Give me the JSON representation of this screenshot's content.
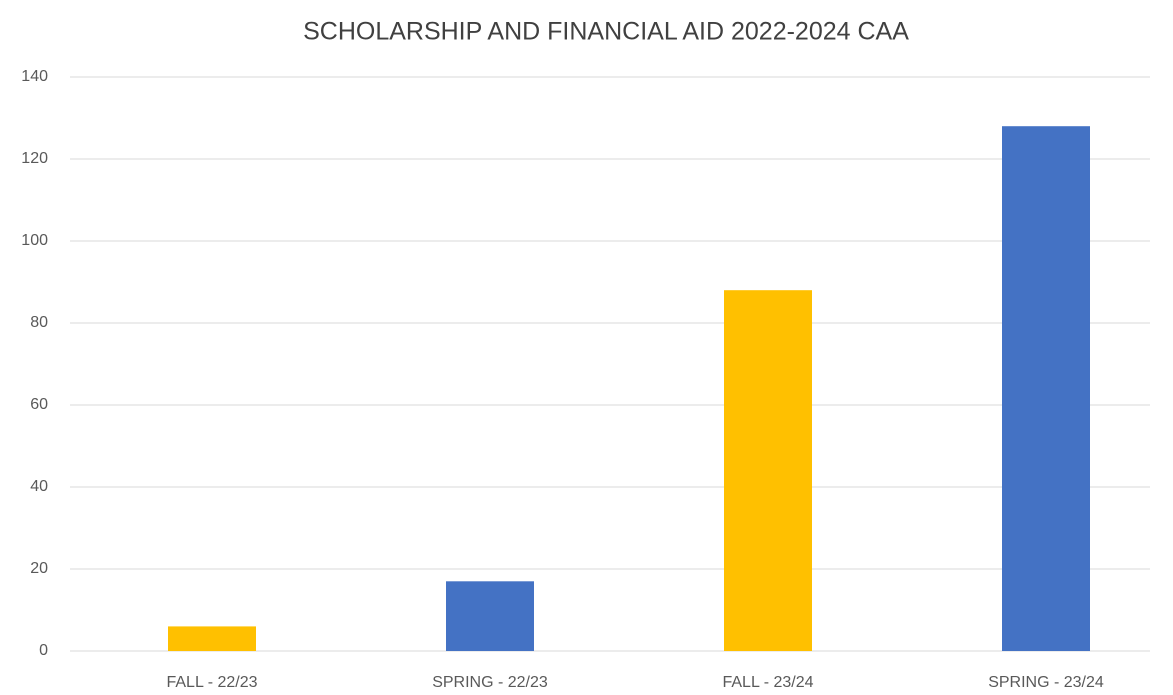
{
  "chart_data": {
    "type": "bar",
    "title": "SCHOLARSHIP AND FINANCIAL AID 2022-2024 CAA",
    "categories": [
      "FALL - 22/23",
      "SPRING - 22/23",
      "FALL - 23/24",
      "SPRING - 23/24"
    ],
    "values": [
      6,
      17,
      88,
      128
    ],
    "colors": [
      "#ffc000",
      "#4472c4",
      "#ffc000",
      "#4472c4"
    ],
    "ylim": [
      0,
      140
    ],
    "yticks": [
      0,
      20,
      40,
      60,
      80,
      100,
      120,
      140
    ],
    "grid": true
  }
}
